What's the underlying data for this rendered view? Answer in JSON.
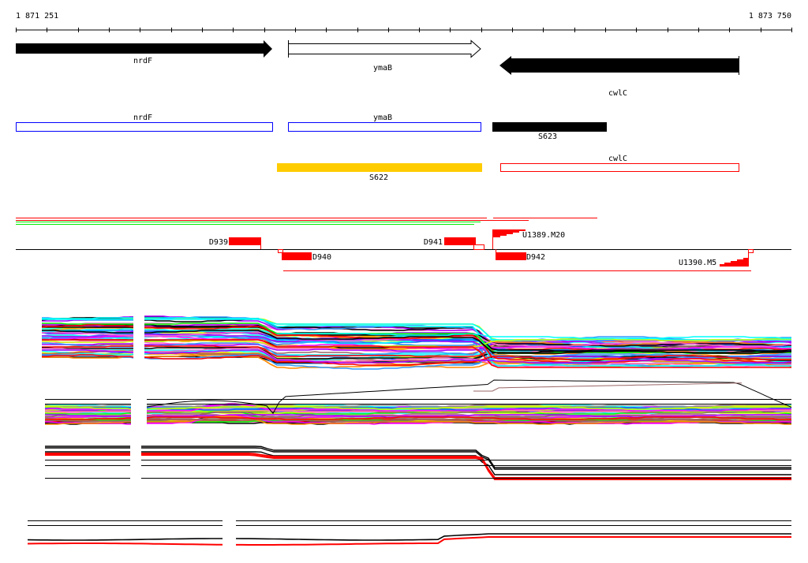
{
  "ruler": {
    "start_label": "1 871 251",
    "end_label": "1 873 750"
  },
  "genes": [
    {
      "name": "nrdF",
      "strand": "+",
      "style": "filled"
    },
    {
      "name": "ymaB",
      "strand": "+",
      "style": "outline"
    },
    {
      "name": "cwlC",
      "strand": "-",
      "style": "filled"
    }
  ],
  "annotations": {
    "blue": [
      {
        "name": "nrdF"
      },
      {
        "name": "ymaB"
      }
    ],
    "s623": {
      "name": "S623"
    },
    "s622": {
      "name": "S622"
    },
    "cwlc_red": {
      "name": "cwlC"
    }
  },
  "features": {
    "d939": "D939",
    "d940": "D940",
    "d941": "D941",
    "d942": "D942",
    "u1389": "U1389.M20",
    "u1390": "U1390.M5"
  },
  "colors": {
    "red": "#ff0000",
    "green": "#00ee00",
    "blue": "#0000ff",
    "yellow": "#ffcc00",
    "black": "#000000"
  }
}
